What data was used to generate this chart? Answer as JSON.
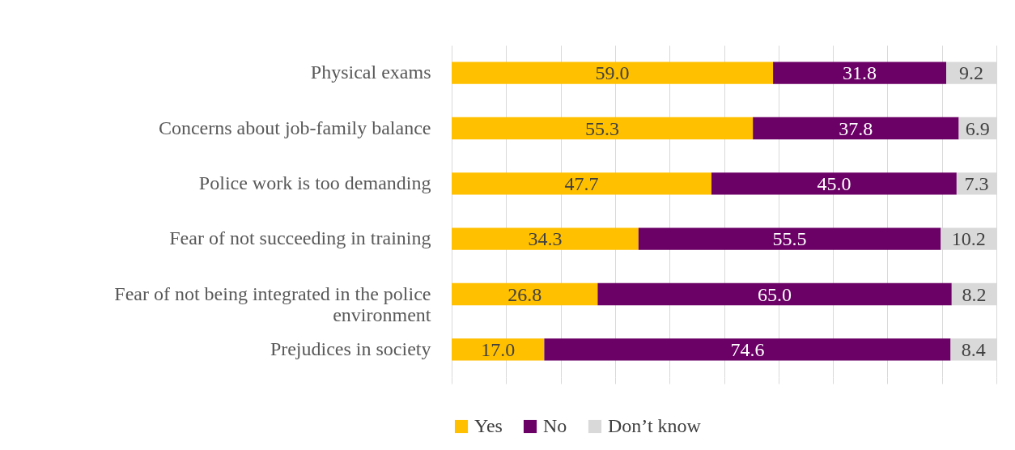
{
  "chart_data": {
    "type": "bar",
    "orientation": "horizontal",
    "stacked": true,
    "grid": "x",
    "legend": "bottom",
    "tick_labels": "y",
    "categories": [
      "Physical exams",
      "Concerns about job-family balance",
      "Police work is too demanding",
      "Fear of not succeeding in training",
      "Fear of not being integrated in the police environment",
      "Prejudices in society"
    ],
    "xlim": [
      0,
      100
    ],
    "xticks": [
      {
        "value": 0,
        "label": null
      },
      {
        "value": 10,
        "label": null
      },
      {
        "value": 20,
        "label": null
      },
      {
        "value": 30,
        "label": null
      },
      {
        "value": 40,
        "label": null
      },
      {
        "value": 50,
        "label": null
      },
      {
        "value": 60,
        "label": null
      },
      {
        "value": 70,
        "label": null
      },
      {
        "value": 80,
        "label": null
      },
      {
        "value": 90,
        "label": null
      },
      {
        "value": 100,
        "label": null
      }
    ],
    "series": [
      {
        "name": "Yes",
        "color": "#ffc000",
        "values": [
          59.0,
          55.3,
          47.7,
          34.3,
          26.8,
          17.0
        ],
        "value_labels": [
          "59.0",
          "55.3",
          "47.7",
          "34.3",
          "26.8",
          "17.0"
        ]
      },
      {
        "name": "No",
        "color": "#6b0066",
        "values": [
          31.8,
          37.8,
          45.0,
          55.5,
          65.0,
          74.6
        ],
        "value_labels": [
          "31.8",
          "37.8",
          "45.0",
          "55.5",
          "65.0",
          "74.6"
        ]
      },
      {
        "name": "Don’t know",
        "color": "#d9d9d9",
        "values": [
          9.2,
          6.9,
          7.3,
          10.2,
          8.2,
          8.4
        ],
        "value_labels": [
          "9.2",
          "6.9",
          "7.3",
          "10.2",
          "8.2",
          "8.4"
        ]
      }
    ]
  }
}
